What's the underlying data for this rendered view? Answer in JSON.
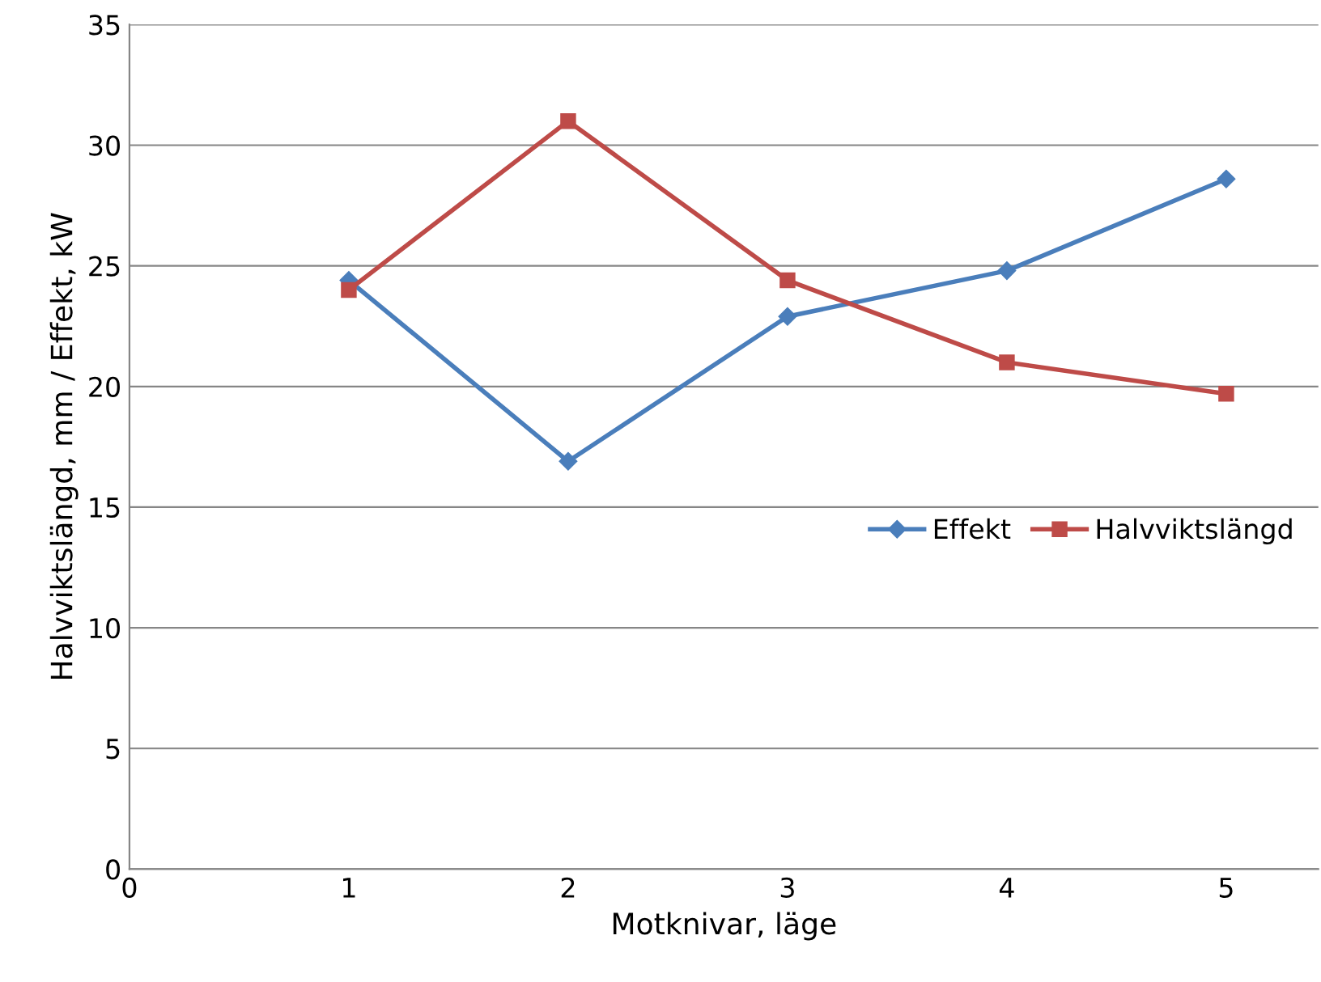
{
  "chart_data": {
    "type": "line",
    "xlabel": "Motknivar, läge",
    "ylabel": "Halvviktslängd, mm / Effekt, kW",
    "x": [
      1,
      2,
      3,
      4,
      5
    ],
    "series": [
      {
        "name": "Effekt",
        "color": "#4a7ebb",
        "values": [
          24.4,
          16.9,
          22.9,
          24.8,
          28.6
        ],
        "marker": "diamond"
      },
      {
        "name": "Halvviktslängd",
        "color": "#be4b48",
        "values": [
          24.0,
          31.0,
          24.4,
          21.0,
          19.7
        ],
        "marker": "square"
      }
    ],
    "xlim": [
      0,
      5.42
    ],
    "xticks": [
      0,
      1,
      2,
      3,
      4,
      5
    ],
    "ylim": [
      0,
      35
    ],
    "yticks": [
      0,
      5,
      10,
      15,
      20,
      25,
      30,
      35
    ],
    "grid": "y",
    "legend": "right",
    "line_style": "solid"
  }
}
